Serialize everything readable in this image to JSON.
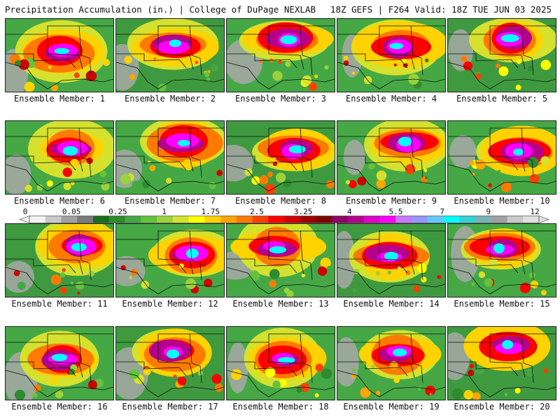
{
  "header": {
    "left": "Precipitation Accumulation (in.) | College of DuPage NEXLAB",
    "right": "18Z GEFS | F264 Valid: 18Z TUE JUN 03 2025"
  },
  "colorbar": {
    "labels": [
      "0",
      "0.05",
      "0.25",
      "1",
      "1.75",
      "2.5",
      "3.25",
      "4",
      "5.5",
      "7",
      "9",
      "12"
    ],
    "colors": [
      "#f2f2f2",
      "#c8c8c8",
      "#a0a0a0",
      "#7a7a7a",
      "#1a6e1a",
      "#2e8b2e",
      "#45a845",
      "#64c23c",
      "#9ad23a",
      "#d4e12e",
      "#ffff00",
      "#ffd200",
      "#ffa500",
      "#ff7a00",
      "#ff4000",
      "#ff0000",
      "#d00000",
      "#a00000",
      "#800000",
      "#8b0064",
      "#b4008c",
      "#dc00c8",
      "#ff00ff",
      "#c878ff",
      "#9696ff",
      "#64c8ff",
      "#00ffff",
      "#32d2d2",
      "#78b4b4",
      "#a0a0a0",
      "#c8c8c8",
      "#e0e0e0"
    ]
  },
  "members": [
    {
      "label": "Ensemble Member: 1"
    },
    {
      "label": "Ensemble Member: 2"
    },
    {
      "label": "Ensemble Member: 3"
    },
    {
      "label": "Ensemble Member: 4"
    },
    {
      "label": "Ensemble Member: 5"
    },
    {
      "label": "Ensemble Member: 6"
    },
    {
      "label": "Ensemble Member: 7"
    },
    {
      "label": "Ensemble Member: 8"
    },
    {
      "label": "Ensemble Member: 9"
    },
    {
      "label": "Ensemble Member: 10"
    },
    {
      "label": "Ensemble Member: 11"
    },
    {
      "label": "Ensemble Member: 12"
    },
    {
      "label": "Ensemble Member: 13"
    },
    {
      "label": "Ensemble Member: 14"
    },
    {
      "label": "Ensemble Member: 15"
    },
    {
      "label": "Ensemble Member: 16"
    },
    {
      "label": "Ensemble Member: 17"
    },
    {
      "label": "Ensemble Member: 18"
    },
    {
      "label": "Ensemble Member: 19"
    },
    {
      "label": "Ensemble Member: 20"
    }
  ]
}
